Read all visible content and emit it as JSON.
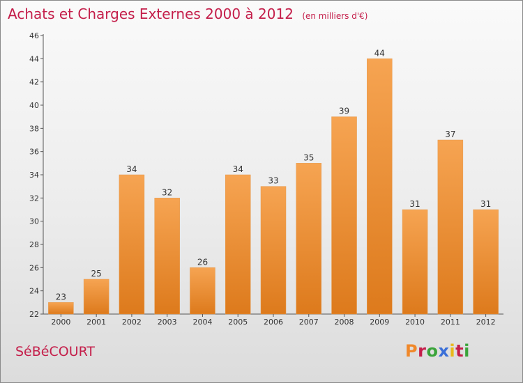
{
  "header": {
    "title": "Achats et Charges Externes 2000 à 2012",
    "unit": "(en milliers d'€)"
  },
  "footer": {
    "commune": "SéBéCOURT",
    "logo_text": "Proxiti"
  },
  "colors": {
    "title": "#c41e4a",
    "bar_top": "#f6a452",
    "bar_bottom": "#dd7a1c",
    "logo_letters": [
      "#f0882a",
      "#c41e4a",
      "#3aa43a",
      "#3a6fd8",
      "#e9b81a",
      "#c41e4a",
      "#3aa43a"
    ]
  },
  "chart_data": {
    "type": "bar",
    "title": "Achats et Charges Externes 2000 à 2012",
    "xlabel": "",
    "ylabel": "",
    "categories": [
      "2000",
      "2001",
      "2002",
      "2003",
      "2004",
      "2005",
      "2006",
      "2007",
      "2008",
      "2009",
      "2010",
      "2011",
      "2012"
    ],
    "values": [
      23,
      25,
      34,
      32,
      26,
      34,
      33,
      35,
      39,
      44,
      31,
      37,
      31
    ],
    "ylim": [
      22,
      46
    ],
    "yticks": [
      22,
      24,
      26,
      28,
      30,
      32,
      34,
      36,
      38,
      40,
      42,
      44,
      46
    ],
    "grid": false,
    "legend": "none"
  }
}
